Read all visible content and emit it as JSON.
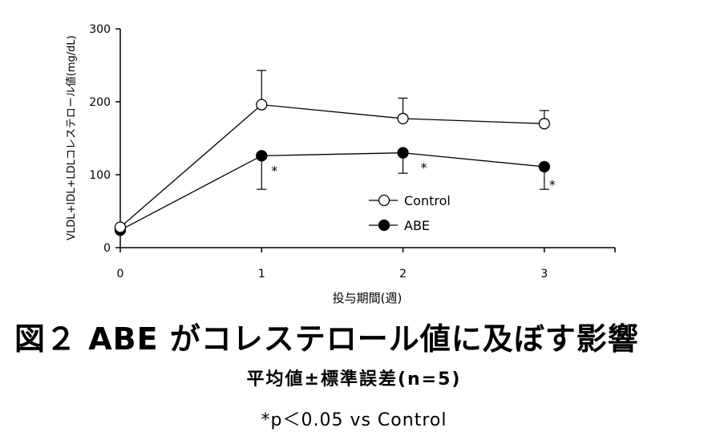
{
  "chart_data": {
    "type": "line",
    "x": [
      0,
      1,
      2,
      3
    ],
    "xlim": [
      0,
      3.5
    ],
    "ylim": [
      0,
      300
    ],
    "xticks": [
      "0",
      "1",
      "2",
      "3"
    ],
    "yticks": [
      "0",
      "100",
      "200",
      "300"
    ],
    "xlabel": "投与期間(週)",
    "ylabel": "VLDL+IDL+LDLコレステロール値(mg/dL)",
    "grid": false,
    "legend_position": "center-right",
    "series": [
      {
        "name": "Control",
        "marker": "open-circle",
        "values": [
          28,
          196,
          177,
          170
        ],
        "error": [
          null,
          47,
          28,
          18
        ]
      },
      {
        "name": "ABE",
        "marker": "filled-circle",
        "values": [
          24,
          126,
          130,
          111
        ],
        "error": [
          null,
          46,
          28,
          31
        ],
        "significance": [
          null,
          "*",
          "*",
          "*"
        ]
      }
    ]
  },
  "caption": {
    "title": "図２ ABE がコレステロール値に及ぼす影響",
    "subtitle": "平均値±標準誤差(n=5)",
    "note": "*p＜0.05 vs Control"
  }
}
